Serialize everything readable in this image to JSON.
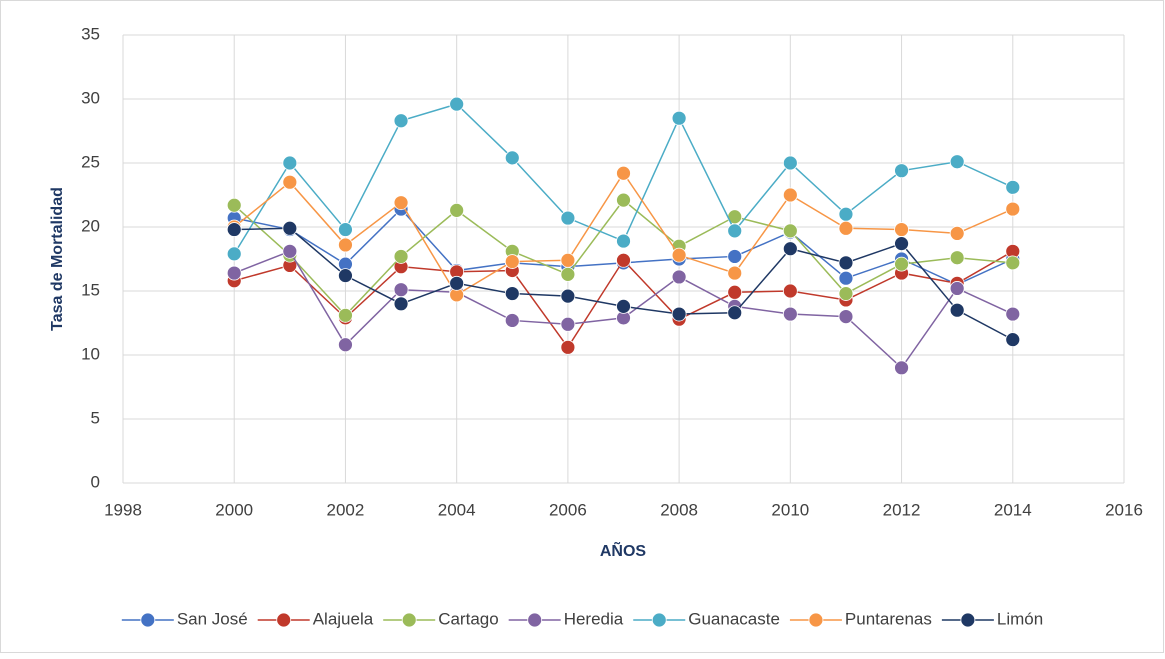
{
  "chart_data": {
    "type": "line",
    "x_label": "AÑOS",
    "y_label": "Tasa de Mortalidad",
    "x": [
      2000,
      2001,
      2002,
      2003,
      2004,
      2005,
      2006,
      2007,
      2008,
      2009,
      2010,
      2011,
      2012,
      2013,
      2014
    ],
    "series": [
      {
        "name": "San José",
        "color": "#4472c4",
        "values": [
          20.7,
          19.8,
          17.1,
          21.4,
          16.6,
          17.2,
          16.9,
          17.2,
          17.5,
          17.7,
          19.6,
          16.0,
          17.5,
          15.5,
          17.5
        ]
      },
      {
        "name": "Alajuela",
        "color": "#c0392b",
        "values": [
          15.8,
          17.0,
          12.9,
          16.9,
          16.5,
          16.6,
          10.6,
          17.4,
          12.8,
          14.9,
          15.0,
          14.3,
          16.4,
          15.6,
          18.1
        ]
      },
      {
        "name": "Cartago",
        "color": "#9bbb59",
        "values": [
          21.7,
          17.8,
          13.1,
          17.7,
          21.3,
          18.1,
          16.3,
          22.1,
          18.5,
          20.8,
          19.7,
          14.8,
          17.1,
          17.6,
          17.2
        ]
      },
      {
        "name": "Heredia",
        "color": "#8064a2",
        "values": [
          16.4,
          18.1,
          10.8,
          15.1,
          14.9,
          12.7,
          12.4,
          12.9,
          16.1,
          13.8,
          13.2,
          13.0,
          9.0,
          15.2,
          13.2
        ]
      },
      {
        "name": "Guanacaste",
        "color": "#4bacc6",
        "values": [
          17.9,
          25.0,
          19.8,
          28.3,
          29.6,
          25.4,
          20.7,
          18.9,
          28.5,
          19.7,
          25.0,
          21.0,
          24.4,
          25.1,
          23.1
        ]
      },
      {
        "name": "Puntarenas",
        "color": "#f79646",
        "values": [
          20.0,
          23.5,
          18.6,
          21.9,
          14.7,
          17.3,
          17.4,
          24.2,
          17.8,
          16.4,
          22.5,
          19.9,
          19.8,
          19.5,
          21.4
        ]
      },
      {
        "name": "Limón",
        "color": "#1f3864",
        "values": [
          19.8,
          19.9,
          16.2,
          14.0,
          15.6,
          14.8,
          14.6,
          13.8,
          13.2,
          13.3,
          18.3,
          17.2,
          18.7,
          13.5,
          11.2
        ]
      }
    ],
    "xlim": [
      1998,
      2016
    ],
    "xticks": [
      1998,
      2000,
      2002,
      2004,
      2006,
      2008,
      2010,
      2012,
      2014,
      2016
    ],
    "ylim": [
      0,
      35
    ],
    "yticks": [
      0,
      5,
      10,
      15,
      20,
      25,
      30,
      35
    ],
    "grid": true,
    "legend": "bottom"
  }
}
